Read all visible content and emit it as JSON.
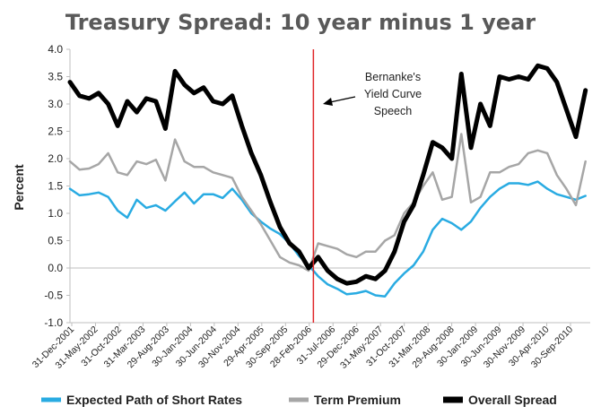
{
  "chart_data": {
    "type": "line",
    "title": "Treasury Spread: 10 year minus 1 year",
    "ylabel": "Percent",
    "xlabel": "",
    "ylim": [
      -1.0,
      4.0
    ],
    "yticks": [
      "4.0",
      "3.5",
      "3.0",
      "2.5",
      "2.0",
      "1.5",
      "1.0",
      "0.5",
      "0.0",
      "-0.5",
      "-1.0"
    ],
    "x_tick_labels": [
      "31-Dec-2001",
      "31-May-2002",
      "31-Oct-2002",
      "31-Mar-2003",
      "29-Aug-2003",
      "30-Jan-2004",
      "30-Jun-2004",
      "30-Nov-2004",
      "29-Apr-2005",
      "30-Sep-2005",
      "28-Feb-2006",
      "31-Jul-2006",
      "29-Dec-2006",
      "31-May-2007",
      "31-Oct-2007",
      "31-Mar-2008",
      "29-Aug-2008",
      "30-Jan-2009",
      "30-Jun-2009",
      "30-Nov-2009",
      "30-Apr-2010",
      "30-Sep-2010"
    ],
    "x_range": [
      "2001-12",
      "2011-01"
    ],
    "grid": false,
    "legend_position": "bottom",
    "annotation": {
      "text": [
        "Bernanke's",
        "Yield Curve",
        "Speech"
      ],
      "marker_x": "2006-03",
      "marker_color": "#e0262a"
    },
    "series": [
      {
        "name": "Expected Path of Short Rates",
        "color": "#29abe2",
        "values": [
          [
            "2001-12",
            1.45
          ],
          [
            "2002-02",
            1.33
          ],
          [
            "2002-04",
            1.35
          ],
          [
            "2002-06",
            1.38
          ],
          [
            "2002-08",
            1.3
          ],
          [
            "2002-10",
            1.05
          ],
          [
            "2002-12",
            0.92
          ],
          [
            "2003-02",
            1.25
          ],
          [
            "2003-04",
            1.1
          ],
          [
            "2003-06",
            1.15
          ],
          [
            "2003-08",
            1.05
          ],
          [
            "2003-10",
            1.22
          ],
          [
            "2003-12",
            1.38
          ],
          [
            "2004-02",
            1.18
          ],
          [
            "2004-04",
            1.35
          ],
          [
            "2004-06",
            1.35
          ],
          [
            "2004-08",
            1.28
          ],
          [
            "2004-10",
            1.45
          ],
          [
            "2004-12",
            1.25
          ],
          [
            "2005-02",
            1.0
          ],
          [
            "2005-04",
            0.85
          ],
          [
            "2005-06",
            0.72
          ],
          [
            "2005-08",
            0.62
          ],
          [
            "2005-10",
            0.45
          ],
          [
            "2005-12",
            0.22
          ],
          [
            "2006-02",
            0.05
          ],
          [
            "2006-04",
            -0.15
          ],
          [
            "2006-06",
            -0.3
          ],
          [
            "2006-08",
            -0.38
          ],
          [
            "2006-10",
            -0.48
          ],
          [
            "2006-12",
            -0.46
          ],
          [
            "2007-02",
            -0.42
          ],
          [
            "2007-04",
            -0.5
          ],
          [
            "2007-06",
            -0.52
          ],
          [
            "2007-08",
            -0.28
          ],
          [
            "2007-10",
            -0.1
          ],
          [
            "2007-12",
            0.05
          ],
          [
            "2008-02",
            0.3
          ],
          [
            "2008-04",
            0.7
          ],
          [
            "2008-06",
            0.9
          ],
          [
            "2008-08",
            0.82
          ],
          [
            "2008-10",
            0.7
          ],
          [
            "2008-12",
            0.85
          ],
          [
            "2009-02",
            1.1
          ],
          [
            "2009-04",
            1.3
          ],
          [
            "2009-06",
            1.45
          ],
          [
            "2009-08",
            1.55
          ],
          [
            "2009-10",
            1.55
          ],
          [
            "2009-12",
            1.52
          ],
          [
            "2010-02",
            1.58
          ],
          [
            "2010-04",
            1.45
          ],
          [
            "2010-06",
            1.35
          ],
          [
            "2010-08",
            1.3
          ],
          [
            "2010-10",
            1.25
          ],
          [
            "2010-12",
            1.32
          ]
        ]
      },
      {
        "name": "Term Premium",
        "color": "#a6a6a6",
        "values": [
          [
            "2001-12",
            1.95
          ],
          [
            "2002-02",
            1.8
          ],
          [
            "2002-04",
            1.82
          ],
          [
            "2002-06",
            1.9
          ],
          [
            "2002-08",
            2.1
          ],
          [
            "2002-10",
            1.75
          ],
          [
            "2002-12",
            1.7
          ],
          [
            "2003-02",
            1.95
          ],
          [
            "2003-04",
            1.9
          ],
          [
            "2003-06",
            1.98
          ],
          [
            "2003-08",
            1.6
          ],
          [
            "2003-10",
            2.35
          ],
          [
            "2003-12",
            1.95
          ],
          [
            "2004-02",
            1.85
          ],
          [
            "2004-04",
            1.85
          ],
          [
            "2004-06",
            1.75
          ],
          [
            "2004-08",
            1.7
          ],
          [
            "2004-10",
            1.65
          ],
          [
            "2004-12",
            1.3
          ],
          [
            "2005-02",
            1.05
          ],
          [
            "2005-04",
            0.8
          ],
          [
            "2005-06",
            0.5
          ],
          [
            "2005-08",
            0.2
          ],
          [
            "2005-10",
            0.1
          ],
          [
            "2005-12",
            0.05
          ],
          [
            "2006-02",
            -0.05
          ],
          [
            "2006-04",
            0.45
          ],
          [
            "2006-06",
            0.4
          ],
          [
            "2006-08",
            0.35
          ],
          [
            "2006-10",
            0.25
          ],
          [
            "2006-12",
            0.2
          ],
          [
            "2007-02",
            0.3
          ],
          [
            "2007-04",
            0.3
          ],
          [
            "2007-06",
            0.5
          ],
          [
            "2007-08",
            0.6
          ],
          [
            "2007-10",
            1.0
          ],
          [
            "2007-12",
            1.2
          ],
          [
            "2008-02",
            1.5
          ],
          [
            "2008-04",
            1.75
          ],
          [
            "2008-06",
            1.25
          ],
          [
            "2008-08",
            1.3
          ],
          [
            "2008-10",
            2.45
          ],
          [
            "2008-12",
            1.2
          ],
          [
            "2009-02",
            1.3
          ],
          [
            "2009-04",
            1.75
          ],
          [
            "2009-06",
            1.75
          ],
          [
            "2009-08",
            1.85
          ],
          [
            "2009-10",
            1.9
          ],
          [
            "2009-12",
            2.1
          ],
          [
            "2010-02",
            2.15
          ],
          [
            "2010-04",
            2.1
          ],
          [
            "2010-06",
            1.7
          ],
          [
            "2010-08",
            1.45
          ],
          [
            "2010-10",
            1.15
          ],
          [
            "2010-12",
            1.95
          ]
        ]
      },
      {
        "name": "Overall Spread",
        "color": "#000000",
        "values": [
          [
            "2001-12",
            3.4
          ],
          [
            "2002-02",
            3.15
          ],
          [
            "2002-04",
            3.1
          ],
          [
            "2002-06",
            3.2
          ],
          [
            "2002-08",
            3.0
          ],
          [
            "2002-10",
            2.6
          ],
          [
            "2002-12",
            3.05
          ],
          [
            "2003-02",
            2.85
          ],
          [
            "2003-04",
            3.1
          ],
          [
            "2003-06",
            3.05
          ],
          [
            "2003-08",
            2.55
          ],
          [
            "2003-10",
            3.6
          ],
          [
            "2003-12",
            3.35
          ],
          [
            "2004-02",
            3.2
          ],
          [
            "2004-04",
            3.3
          ],
          [
            "2004-06",
            3.05
          ],
          [
            "2004-08",
            3.0
          ],
          [
            "2004-10",
            3.15
          ],
          [
            "2004-12",
            2.6
          ],
          [
            "2005-02",
            2.1
          ],
          [
            "2005-04",
            1.7
          ],
          [
            "2005-06",
            1.2
          ],
          [
            "2005-08",
            0.75
          ],
          [
            "2005-10",
            0.45
          ],
          [
            "2005-12",
            0.3
          ],
          [
            "2006-02",
            0.0
          ],
          [
            "2006-04",
            0.2
          ],
          [
            "2006-06",
            -0.05
          ],
          [
            "2006-08",
            -0.2
          ],
          [
            "2006-10",
            -0.28
          ],
          [
            "2006-12",
            -0.25
          ],
          [
            "2007-02",
            -0.15
          ],
          [
            "2007-04",
            -0.2
          ],
          [
            "2007-06",
            -0.05
          ],
          [
            "2007-08",
            0.3
          ],
          [
            "2007-10",
            0.85
          ],
          [
            "2007-12",
            1.15
          ],
          [
            "2008-02",
            1.7
          ],
          [
            "2008-04",
            2.3
          ],
          [
            "2008-06",
            2.2
          ],
          [
            "2008-08",
            2.0
          ],
          [
            "2008-10",
            3.55
          ],
          [
            "2008-12",
            2.2
          ],
          [
            "2009-02",
            3.0
          ],
          [
            "2009-04",
            2.6
          ],
          [
            "2009-06",
            3.5
          ],
          [
            "2009-08",
            3.45
          ],
          [
            "2009-10",
            3.5
          ],
          [
            "2009-12",
            3.45
          ],
          [
            "2010-02",
            3.7
          ],
          [
            "2010-04",
            3.65
          ],
          [
            "2010-06",
            3.4
          ],
          [
            "2010-08",
            2.9
          ],
          [
            "2010-10",
            2.4
          ],
          [
            "2010-12",
            3.25
          ]
        ]
      }
    ]
  }
}
